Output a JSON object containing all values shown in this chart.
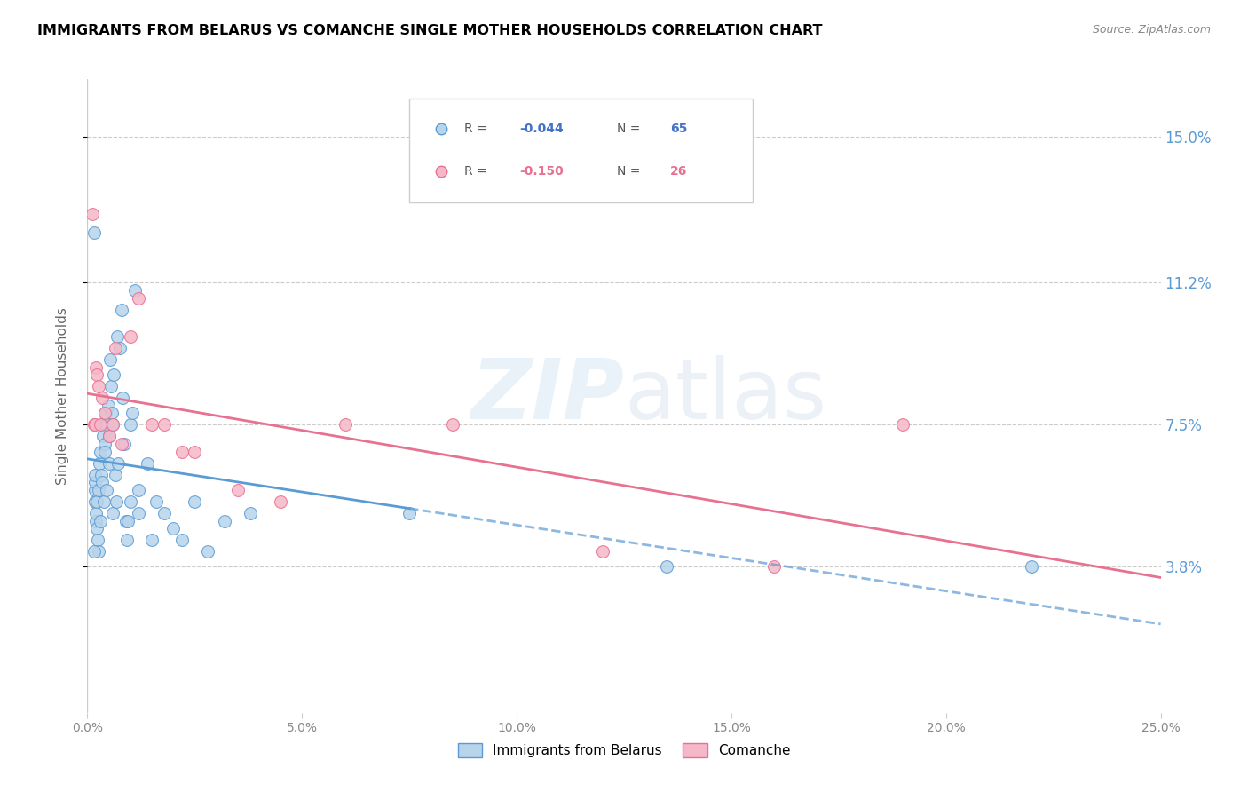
{
  "title": "IMMIGRANTS FROM BELARUS VS COMANCHE SINGLE MOTHER HOUSEHOLDS CORRELATION CHART",
  "source": "Source: ZipAtlas.com",
  "ylabel": "Single Mother Households",
  "ytick_labels": [
    "3.8%",
    "7.5%",
    "11.2%",
    "15.0%"
  ],
  "ytick_values": [
    3.8,
    7.5,
    11.2,
    15.0
  ],
  "xmin": 0.0,
  "xmax": 25.0,
  "ymin": 0.0,
  "ymax": 16.5,
  "color_blue": "#b8d4ea",
  "color_pink": "#f5b8c8",
  "color_blue_line": "#5b9bd5",
  "color_pink_line": "#e87090",
  "watermark": "ZIPatlas",
  "blue_line_start": 7.5,
  "blue_scatter_x": [
    0.18,
    0.18,
    0.18,
    0.18,
    0.2,
    0.2,
    0.22,
    0.22,
    0.24,
    0.25,
    0.26,
    0.28,
    0.3,
    0.3,
    0.32,
    0.34,
    0.35,
    0.36,
    0.38,
    0.4,
    0.4,
    0.42,
    0.44,
    0.45,
    0.48,
    0.5,
    0.5,
    0.52,
    0.55,
    0.58,
    0.6,
    0.6,
    0.62,
    0.65,
    0.68,
    0.7,
    0.72,
    0.75,
    0.8,
    0.82,
    0.85,
    0.9,
    0.92,
    0.95,
    1.0,
    1.0,
    1.05,
    1.1,
    1.2,
    1.2,
    1.4,
    1.5,
    1.6,
    1.8,
    2.0,
    2.2,
    2.5,
    2.8,
    3.2,
    3.8,
    7.5,
    13.5,
    22.0,
    0.15,
    0.16
  ],
  "blue_scatter_y": [
    5.5,
    5.8,
    6.0,
    6.2,
    5.0,
    5.2,
    4.8,
    5.5,
    4.5,
    4.2,
    5.8,
    6.5,
    6.8,
    5.0,
    6.2,
    7.5,
    6.0,
    7.2,
    5.5,
    7.0,
    6.8,
    7.8,
    7.5,
    5.8,
    8.0,
    7.2,
    6.5,
    9.2,
    8.5,
    7.8,
    5.2,
    7.5,
    8.8,
    6.2,
    5.5,
    9.8,
    6.5,
    9.5,
    10.5,
    8.2,
    7.0,
    5.0,
    4.5,
    5.0,
    5.5,
    7.5,
    7.8,
    11.0,
    5.8,
    5.2,
    6.5,
    4.5,
    5.5,
    5.2,
    4.8,
    4.5,
    5.5,
    4.2,
    5.0,
    5.2,
    5.2,
    3.8,
    3.8,
    4.2,
    12.5
  ],
  "pink_scatter_x": [
    0.15,
    0.18,
    0.2,
    0.22,
    0.25,
    0.3,
    0.35,
    0.4,
    0.5,
    0.6,
    0.65,
    0.8,
    1.0,
    1.2,
    1.5,
    1.8,
    2.2,
    2.5,
    3.5,
    4.5,
    6.0,
    8.5,
    12.0,
    16.0,
    19.0,
    0.12
  ],
  "pink_scatter_y": [
    7.5,
    7.5,
    9.0,
    8.8,
    8.5,
    7.5,
    8.2,
    7.8,
    7.2,
    7.5,
    9.5,
    7.0,
    9.8,
    10.8,
    7.5,
    7.5,
    6.8,
    6.8,
    5.8,
    5.5,
    7.5,
    7.5,
    4.2,
    3.8,
    7.5,
    13.0
  ]
}
